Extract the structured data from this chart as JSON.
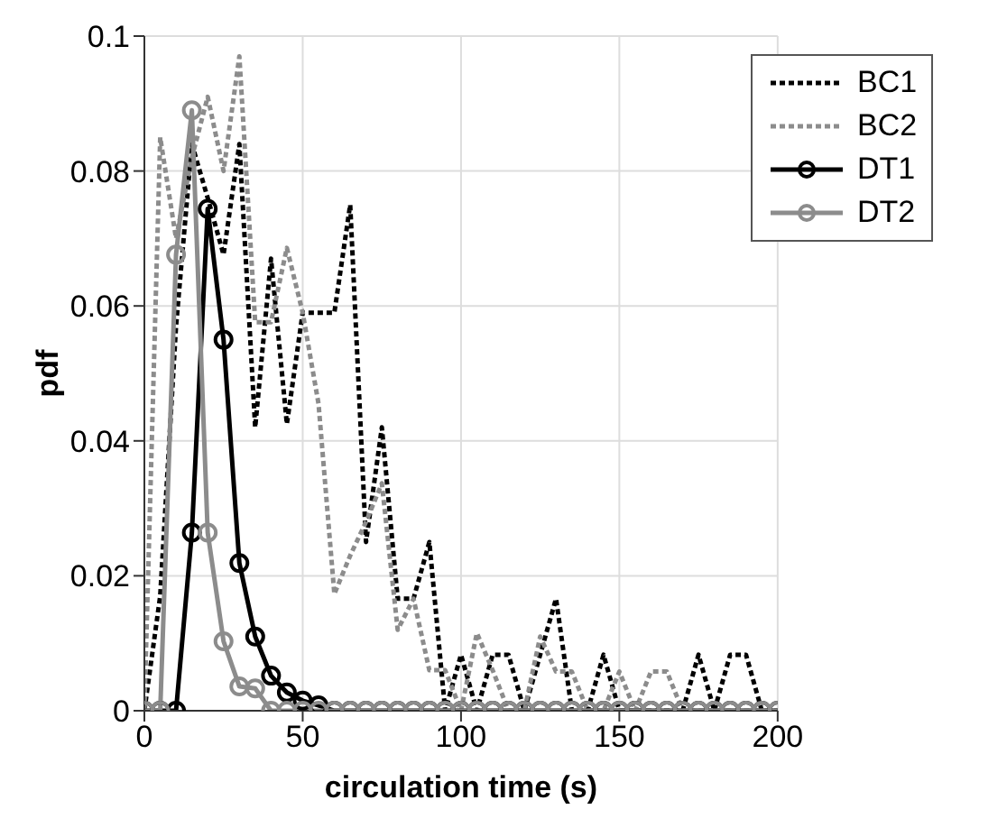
{
  "chart_data": {
    "type": "line",
    "xlabel": "circulation time (s)",
    "ylabel": "pdf",
    "x": [
      0,
      5,
      10,
      15,
      20,
      25,
      30,
      35,
      40,
      45,
      50,
      55,
      60,
      65,
      70,
      75,
      80,
      85,
      90,
      95,
      100,
      105,
      110,
      115,
      120,
      125,
      130,
      135,
      140,
      145,
      150,
      155,
      160,
      165,
      170,
      175,
      180,
      185,
      190,
      195,
      200
    ],
    "series": [
      {
        "name": "BC1",
        "color": "#000000",
        "line_style": "dotted",
        "marker": "none",
        "values": [
          0,
          0.017,
          0.057,
          0.084,
          0.076,
          0.0676,
          0.084,
          0.042,
          0.067,
          0.0425,
          0.059,
          0.059,
          0.059,
          0.075,
          0.025,
          0.042,
          0.0166,
          0.0166,
          0.025,
          0,
          0.0083,
          0,
          0.0083,
          0.0083,
          0,
          0.0083,
          0.0166,
          0,
          0,
          0.0083,
          0,
          0,
          0,
          0,
          0,
          0.0083,
          0,
          0.0083,
          0.0083,
          0,
          0
        ]
      },
      {
        "name": "BC2",
        "color": "#8c8c8c",
        "line_style": "dotted",
        "marker": "none",
        "values": [
          0,
          0.085,
          0.07,
          0.082,
          0.091,
          0.08,
          0.097,
          0.0576,
          0.0576,
          0.0686,
          0.059,
          0.0455,
          0.0173,
          0.023,
          0.028,
          0.0337,
          0.012,
          0.0166,
          0.006,
          0.006,
          0,
          0.0115,
          0.006,
          0,
          0,
          0.011,
          0.0058,
          0.0058,
          0,
          0,
          0.0058,
          0,
          0.0058,
          0.0058,
          0,
          0,
          0,
          0,
          0,
          0,
          0
        ]
      },
      {
        "name": "DT1",
        "color": "#000000",
        "line_style": "solid",
        "marker": "circle",
        "values": [
          0,
          0,
          0,
          0.0264,
          0.0744,
          0.055,
          0.0219,
          0.011,
          0.0052,
          0.0027,
          0.0015,
          0.0008,
          0,
          0,
          0,
          0,
          0,
          0,
          0,
          0,
          0,
          0,
          0,
          0,
          0,
          0,
          0,
          0,
          0,
          0,
          0,
          0,
          0,
          0,
          0,
          0,
          0,
          0,
          0,
          0,
          0
        ]
      },
      {
        "name": "DT2",
        "color": "#8c8c8c",
        "line_style": "solid",
        "marker": "circle",
        "values": [
          0,
          0,
          0.0676,
          0.089,
          0.0264,
          0.0103,
          0.0036,
          0.0033,
          0,
          0,
          0,
          0,
          0,
          0,
          0,
          0,
          0,
          0,
          0,
          0,
          0,
          0,
          0,
          0,
          0,
          0,
          0,
          0,
          0,
          0,
          0,
          0,
          0,
          0,
          0,
          0,
          0,
          0,
          0,
          0,
          0
        ]
      }
    ],
    "xlim": [
      0,
      200
    ],
    "xticks": [
      0,
      50,
      100,
      150,
      200
    ],
    "ylim": [
      0,
      0.1
    ],
    "yticks": [
      0,
      0.02,
      0.04,
      0.06,
      0.08,
      0.1
    ],
    "grid": true,
    "legend": "top right"
  }
}
